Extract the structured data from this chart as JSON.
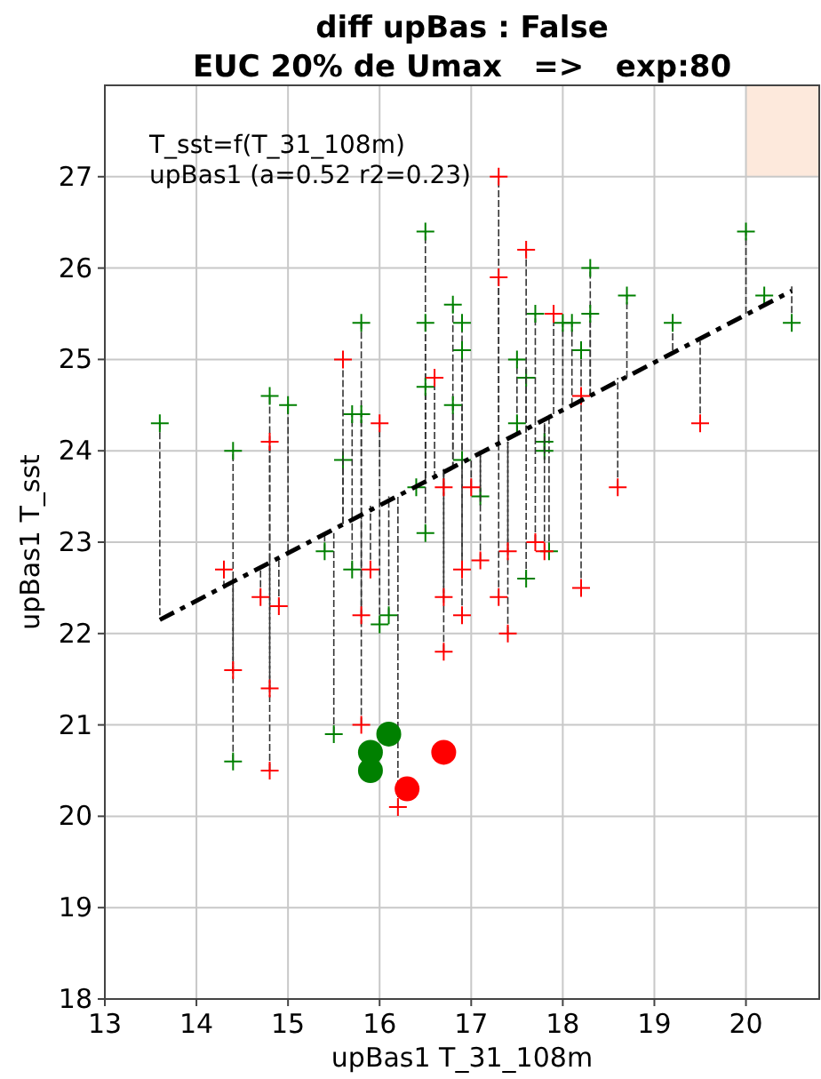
{
  "chart_data": {
    "type": "scatter",
    "title": "diff upBas : False",
    "subtitle": "EUC 20% de Umax   =>   exp:80",
    "xlabel": "upBas1 T_31_108m",
    "ylabel": "upBas1 T_sst",
    "annotations": [
      "T_sst=f(T_31_108m)",
      "upBas1 (a=0.52 r2=0.23)"
    ],
    "xlim": [
      13,
      20.8
    ],
    "ylim": [
      18,
      28
    ],
    "xticks": [
      13,
      14,
      15,
      16,
      17,
      18,
      19,
      20
    ],
    "yticks": [
      18,
      19,
      20,
      21,
      22,
      23,
      24,
      25,
      26,
      27
    ],
    "grid": true,
    "series": [
      {
        "type": "scatter",
        "marker": "cross",
        "color": "#008000",
        "x": [
          13.6,
          14.4,
          14.4,
          14.8,
          15.0,
          15.4,
          15.5,
          15.6,
          15.8,
          15.7,
          15.8,
          15.7,
          16.0,
          16.1,
          16.5,
          16.5,
          16.5,
          16.5,
          16.8,
          16.9,
          16.9,
          16.8,
          16.9,
          16.4,
          17.1,
          17.5,
          17.6,
          17.5,
          17.6,
          17.7,
          17.8,
          17.8,
          17.85,
          18.0,
          18.1,
          18.2,
          18.3,
          18.3,
          18.7,
          19.2,
          20.0,
          20.2,
          20.5
        ],
        "values": [
          24.3,
          24.0,
          20.6,
          24.6,
          24.5,
          22.9,
          20.9,
          23.9,
          25.4,
          24.4,
          24.4,
          22.7,
          22.1,
          22.2,
          26.4,
          25.4,
          24.7,
          23.1,
          25.6,
          25.4,
          25.1,
          24.5,
          23.9,
          23.6,
          23.5,
          25.0,
          24.8,
          24.3,
          22.6,
          25.5,
          24.1,
          24.0,
          22.9,
          25.4,
          25.4,
          25.1,
          26.0,
          25.5,
          25.7,
          25.4,
          26.4,
          25.7,
          25.4
        ],
        "errors": [
          [
            22.2,
            24.3
          ],
          [
            22.6,
            24.0
          ],
          [
            20.6,
            22.6
          ],
          [
            22.8,
            24.6
          ],
          [
            22.9,
            24.5
          ],
          [
            22.9,
            23.1
          ],
          [
            20.9,
            23.1
          ],
          [
            23.2,
            23.9
          ],
          [
            23.3,
            25.4
          ],
          [
            23.3,
            24.4
          ],
          [
            23.3,
            24.4
          ],
          [
            22.7,
            23.3
          ],
          [
            22.1,
            23.4
          ],
          [
            22.2,
            23.5
          ],
          [
            23.7,
            26.4
          ],
          [
            23.7,
            25.4
          ],
          [
            23.7,
            24.7
          ],
          [
            23.1,
            23.7
          ],
          [
            23.8,
            25.6
          ],
          [
            23.9,
            25.4
          ],
          [
            23.9,
            25.1
          ],
          [
            23.8,
            24.5
          ],
          null,
          null,
          [
            23.5,
            24.0
          ],
          [
            24.2,
            25.0
          ],
          [
            24.2,
            24.8
          ],
          [
            24.2,
            24.3
          ],
          [
            22.6,
            24.2
          ],
          [
            24.3,
            25.5
          ],
          [
            24.1,
            24.3
          ],
          [
            24.0,
            24.3
          ],
          [
            22.9,
            24.4
          ],
          [
            24.5,
            25.4
          ],
          [
            24.5,
            25.4
          ],
          [
            24.6,
            25.1
          ],
          [
            24.6,
            26.0
          ],
          [
            24.6,
            25.5
          ],
          [
            24.8,
            25.7
          ],
          [
            25.1,
            25.4
          ],
          [
            25.5,
            26.4
          ],
          [
            25.6,
            25.7
          ],
          [
            25.4,
            25.8
          ]
        ]
      },
      {
        "type": "scatter",
        "marker": "cross",
        "color": "#ff0000",
        "x": [
          14.4,
          14.3,
          14.8,
          14.8,
          14.8,
          14.7,
          14.9,
          15.6,
          15.9,
          15.8,
          15.8,
          16.0,
          16.2,
          16.6,
          16.7,
          16.7,
          16.7,
          16.9,
          16.9,
          17.0,
          17.1,
          17.3,
          17.3,
          17.3,
          17.4,
          17.4,
          17.6,
          17.7,
          17.8,
          17.9,
          18.2,
          18.2,
          18.6,
          19.5
        ],
        "values": [
          21.6,
          22.7,
          24.1,
          21.4,
          20.5,
          22.4,
          22.3,
          25.0,
          22.7,
          22.2,
          21.0,
          24.3,
          20.1,
          24.8,
          23.6,
          22.4,
          21.8,
          22.7,
          22.2,
          23.6,
          22.8,
          27.0,
          25.9,
          22.4,
          22.9,
          22.0,
          26.2,
          23.0,
          22.9,
          25.5,
          24.6,
          22.5,
          23.6,
          24.3
        ],
        "errors": [
          [
            21.6,
            22.6
          ],
          [
            22.5,
            22.7
          ],
          [
            22.8,
            24.1
          ],
          [
            21.4,
            22.8
          ],
          [
            20.5,
            22.8
          ],
          [
            22.4,
            22.7
          ],
          [
            22.3,
            22.8
          ],
          [
            23.2,
            25.0
          ],
          [
            22.7,
            23.4
          ],
          [
            22.2,
            23.3
          ],
          [
            21.0,
            23.3
          ],
          [
            23.4,
            24.3
          ],
          [
            20.1,
            23.5
          ],
          [
            23.7,
            24.8
          ],
          [
            23.6,
            23.8
          ],
          [
            22.4,
            23.8
          ],
          [
            21.8,
            23.8
          ],
          [
            22.7,
            23.9
          ],
          [
            22.2,
            23.9
          ],
          [
            23.6,
            23.9
          ],
          [
            22.8,
            24.0
          ],
          [
            24.1,
            27.0
          ],
          [
            24.1,
            25.9
          ],
          [
            22.4,
            24.1
          ],
          [
            22.9,
            24.1
          ],
          [
            22.0,
            24.1
          ],
          [
            24.2,
            26.2
          ],
          [
            23.0,
            24.3
          ],
          [
            22.9,
            24.3
          ],
          [
            24.4,
            25.5
          ],
          null,
          [
            22.5,
            24.6
          ],
          [
            23.6,
            24.8
          ],
          [
            24.3,
            25.2
          ]
        ]
      },
      {
        "type": "scatter",
        "marker": "circle",
        "color": "#008000",
        "x": [
          15.9,
          15.9,
          16.1
        ],
        "values": [
          20.5,
          20.7,
          20.9
        ]
      },
      {
        "type": "scatter",
        "marker": "circle",
        "color": "#ff0000",
        "x": [
          16.3,
          16.7
        ],
        "values": [
          20.3,
          20.7
        ]
      },
      {
        "type": "line",
        "marker": "none",
        "line_style": "dashdot",
        "color": "#000000",
        "x": [
          13.6,
          20.5
        ],
        "values": [
          22.15,
          25.75
        ]
      }
    ]
  }
}
